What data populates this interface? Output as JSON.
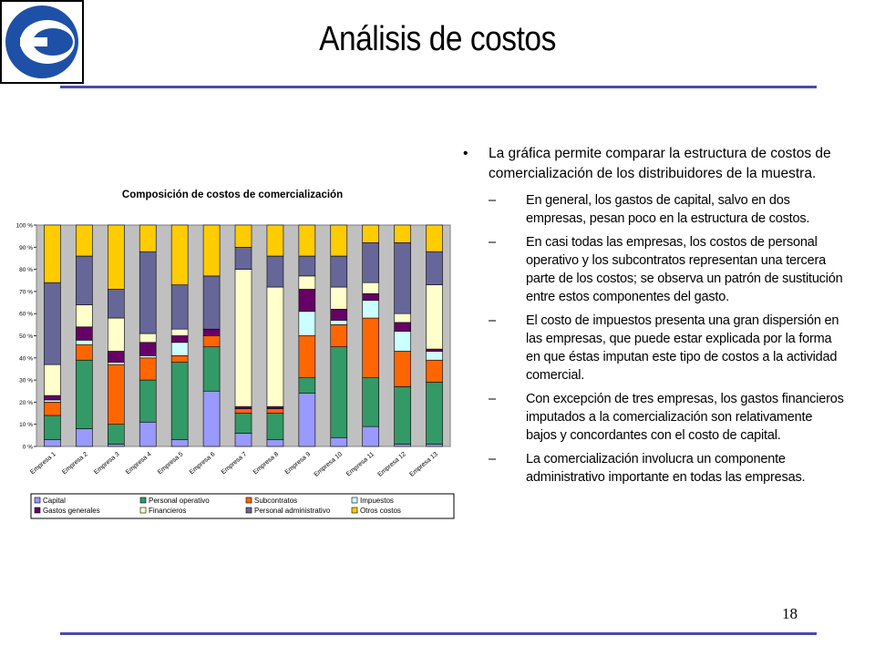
{
  "slide": {
    "title": "Análisis de costos",
    "number": "18",
    "logo_icon": "company-logo-e-icon",
    "rule_color": "#4b4ba6"
  },
  "text": {
    "bullet_mark": "•",
    "sub_mark": "–",
    "main": "La gráfica permite comparar la estructura de costos de comercialización de los distribuidores de la muestra.",
    "subs": [
      "En general, los gastos de capital, salvo en dos empresas, pesan poco en la estructura de costos.",
      "En casi todas las empresas, los costos de personal operativo y los subcontratos representan una tercera parte de los costos; se observa un patrón de sustitución entre estos componentes del gasto.",
      "El costo de impuestos presenta una gran dispersión en las empresas, que puede estar explicada por la forma en que éstas imputan este tipo de costos a la actividad comercial.",
      "Con excepción de tres empresas, los gastos financieros imputados a la comercialización son relativamente bajos y concordantes con el costo de capital.",
      "La comercialización involucra un componente administrativo importante en todas las empresas."
    ]
  },
  "chart_data": {
    "type": "bar",
    "stacked": true,
    "percent": true,
    "title": "Composición de costos de comercialización",
    "ylim": [
      0,
      100
    ],
    "yticks": [
      "0 %",
      "10 %",
      "20 %",
      "30 %",
      "40 %",
      "50 %",
      "60 %",
      "70 %",
      "80 %",
      "90 %",
      "100 %"
    ],
    "grid": false,
    "plot_background": "#c0c0c0",
    "legend_position": "bottom",
    "categories": [
      "Empresa 1",
      "Empresa 2",
      "Empresa 3",
      "Empresa 4",
      "Empresa 5",
      "Empresa 6",
      "Empresa 7",
      "Empresa 8",
      "Empresa 9",
      "Empresa 10",
      "Empresa 11",
      "Empresa 12",
      "Empresa 13"
    ],
    "series": [
      {
        "name": "Capital",
        "color": "#9999ff",
        "values": [
          3,
          8,
          1,
          11,
          3,
          25,
          6,
          3,
          24,
          4,
          9,
          1,
          1
        ]
      },
      {
        "name": "Personal operativo",
        "color": "#339966",
        "values": [
          11,
          31,
          9,
          19,
          35,
          20,
          9,
          12,
          7,
          41,
          22,
          26,
          28
        ]
      },
      {
        "name": "Subcontratos",
        "color": "#ff6600",
        "values": [
          6,
          7,
          27,
          10,
          3,
          5,
          2,
          2,
          19,
          10,
          27,
          16,
          10
        ]
      },
      {
        "name": "Impuestos",
        "color": "#ccffff",
        "values": [
          1,
          2,
          1,
          1,
          6,
          0,
          0,
          0,
          11,
          2,
          8,
          9,
          4
        ]
      },
      {
        "name": "Gastos generales",
        "color": "#660066",
        "values": [
          2,
          6,
          5,
          6,
          3,
          3,
          1,
          1,
          10,
          5,
          3,
          4,
          1
        ]
      },
      {
        "name": "Financieros",
        "color": "#ffffcc",
        "values": [
          14,
          10,
          15,
          4,
          3,
          0,
          62,
          54,
          6,
          10,
          5,
          4,
          29
        ]
      },
      {
        "name": "Personal administrativo",
        "color": "#666699",
        "values": [
          37,
          22,
          13,
          37,
          20,
          24,
          10,
          14,
          9,
          14,
          18,
          32,
          15
        ]
      },
      {
        "name": "Otros costos",
        "color": "#ffcc00",
        "values": [
          26,
          14,
          29,
          12,
          27,
          23,
          10,
          14,
          14,
          14,
          8,
          8,
          12
        ]
      }
    ]
  }
}
